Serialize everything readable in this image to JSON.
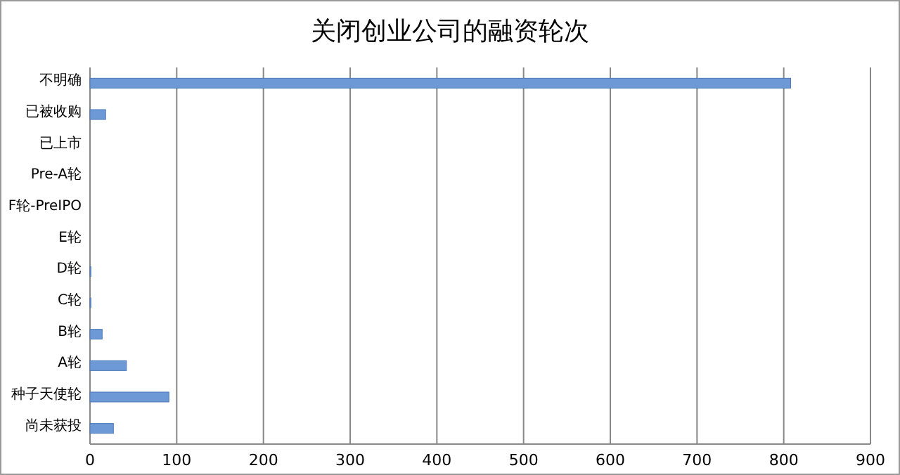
{
  "chart_data": {
    "type": "bar",
    "orientation": "horizontal",
    "title": "关闭创业公司的融资轮次",
    "categories": [
      "不明确",
      "已被收购",
      "已上市",
      "Pre-A轮",
      "F轮-PreIPO",
      "E轮",
      "D轮",
      "C轮",
      "B轮",
      "A轮",
      "种子天使轮",
      "尚未获投"
    ],
    "values": [
      808,
      18,
      0,
      0,
      0,
      0,
      1,
      1,
      14,
      42,
      91,
      27
    ],
    "color": "#6d9ad6",
    "xlim": [
      0,
      900
    ],
    "xticks": [
      0,
      100,
      200,
      300,
      400,
      500,
      600,
      700,
      800,
      900
    ],
    "grid": "x"
  }
}
